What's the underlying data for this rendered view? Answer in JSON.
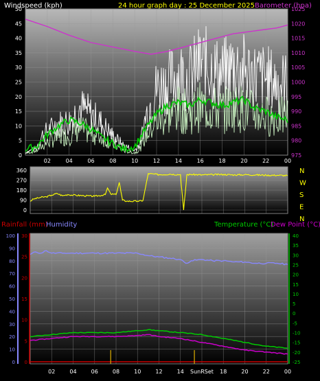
{
  "header": {
    "wind_label": "Windspeed (kph)",
    "title": "24 hour graph day : 25 December 2025",
    "baro_label": "Barometer (hpa)"
  },
  "colors": {
    "wind_gust": "#ffffff",
    "wind_avg": "#c8f0c0",
    "wind_trend": "#00cc00",
    "baro": "#cc33cc",
    "direction": "#ffff00",
    "humidity": "#8888ff",
    "temp": "#00cc00",
    "dew": "#cc00cc",
    "rain": "#cc0000"
  },
  "x_ticks": [
    "02",
    "04",
    "06",
    "08",
    "10",
    "12",
    "14",
    "16",
    "18",
    "20",
    "22",
    "00"
  ],
  "chart_data": [
    {
      "type": "line",
      "name": "wind-and-barometer",
      "title": "24 hour graph day : 25 December 2025",
      "left_axis": {
        "label": "Windspeed (kph)",
        "ticks": [
          "0",
          "5",
          "10",
          "15",
          "20",
          "25",
          "30",
          "35",
          "40",
          "45",
          "50"
        ],
        "range": [
          0,
          50
        ]
      },
      "right_axis": {
        "label": "Barometer (hpa)",
        "ticks": [
          "975",
          "980",
          "985",
          "990",
          "995",
          "1000",
          "1005",
          "1010",
          "1015",
          "1020",
          "1025"
        ],
        "range": [
          975,
          1025
        ]
      },
      "x_range_hours": [
        0,
        24
      ],
      "series": [
        {
          "name": "gust",
          "axis": "left",
          "points": [
            [
              0,
              1
            ],
            [
              1,
              3
            ],
            [
              1.5,
              8
            ],
            [
              2,
              10
            ],
            [
              3,
              13
            ],
            [
              4,
              14
            ],
            [
              5,
              20
            ],
            [
              6,
              17
            ],
            [
              7,
              13
            ],
            [
              8,
              8
            ],
            [
              9,
              4
            ],
            [
              10,
              2
            ],
            [
              10.5,
              5
            ],
            [
              11,
              16
            ],
            [
              12,
              28
            ],
            [
              13,
              30
            ],
            [
              14,
              34
            ],
            [
              15,
              32
            ],
            [
              16,
              38
            ],
            [
              17,
              36
            ],
            [
              18,
              33
            ],
            [
              19,
              37
            ],
            [
              20,
              35
            ],
            [
              21,
              33
            ],
            [
              22,
              32
            ],
            [
              23,
              30
            ],
            [
              24,
              30
            ]
          ]
        },
        {
          "name": "average",
          "axis": "left",
          "points": [
            [
              0,
              1
            ],
            [
              1,
              2
            ],
            [
              1.5,
              4
            ],
            [
              2,
              6
            ],
            [
              3,
              8
            ],
            [
              4,
              9
            ],
            [
              5,
              12
            ],
            [
              6,
              10
            ],
            [
              7,
              8
            ],
            [
              8,
              5
            ],
            [
              9,
              2
            ],
            [
              10,
              1
            ],
            [
              10.5,
              3
            ],
            [
              11,
              9
            ],
            [
              12,
              16
            ],
            [
              13,
              18
            ],
            [
              14,
              21
            ],
            [
              15,
              19
            ],
            [
              16,
              22
            ],
            [
              17,
              21
            ],
            [
              18,
              20
            ],
            [
              19,
              22
            ],
            [
              20,
              21
            ],
            [
              21,
              19
            ],
            [
              22,
              18
            ],
            [
              23,
              17
            ],
            [
              24,
              18
            ]
          ]
        },
        {
          "name": "trend",
          "axis": "left",
          "points": [
            [
              0,
              2
            ],
            [
              1,
              3
            ],
            [
              2,
              7
            ],
            [
              3,
              10
            ],
            [
              4,
              12
            ],
            [
              5,
              11
            ],
            [
              6,
              9
            ],
            [
              7,
              6
            ],
            [
              8,
              4
            ],
            [
              9,
              2
            ],
            [
              10,
              3
            ],
            [
              11,
              9
            ],
            [
              12,
              14
            ],
            [
              13,
              17
            ],
            [
              14,
              18
            ],
            [
              15,
              17
            ],
            [
              16,
              19
            ],
            [
              17,
              18
            ],
            [
              18,
              17
            ],
            [
              19,
              18
            ],
            [
              20,
              19
            ],
            [
              21,
              16
            ],
            [
              22,
              15
            ],
            [
              23,
              13
            ],
            [
              24,
              12
            ]
          ]
        },
        {
          "name": "barometer",
          "axis": "right",
          "points": [
            [
              0,
              1021.5
            ],
            [
              2,
              1019
            ],
            [
              4,
              1016
            ],
            [
              6,
              1013.5
            ],
            [
              8,
              1012
            ],
            [
              10,
              1010.5
            ],
            [
              11.5,
              1009.5
            ],
            [
              13,
              1010.5
            ],
            [
              15,
              1012.5
            ],
            [
              17,
              1014.5
            ],
            [
              19,
              1016.5
            ],
            [
              21,
              1017.5
            ],
            [
              23,
              1018.5
            ],
            [
              24,
              1019.5
            ]
          ]
        }
      ]
    },
    {
      "type": "line",
      "name": "wind-direction",
      "left_axis": {
        "ticks": [
          "0",
          "90",
          "180",
          "270",
          "360"
        ],
        "range": [
          0,
          360
        ]
      },
      "right_labels": [
        "N",
        "W",
        "S",
        "E",
        "N"
      ],
      "series": [
        {
          "name": "direction",
          "points": [
            [
              0,
              80
            ],
            [
              0.3,
              100
            ],
            [
              1,
              115
            ],
            [
              1.5,
              120
            ],
            [
              2,
              135
            ],
            [
              2.5,
              150
            ],
            [
              3,
              130
            ],
            [
              3.5,
              140
            ],
            [
              4,
              135
            ],
            [
              5,
              130
            ],
            [
              6,
              125
            ],
            [
              7,
              140
            ],
            [
              7.2,
              200
            ],
            [
              7.5,
              145
            ],
            [
              8,
              140
            ],
            [
              8.3,
              250
            ],
            [
              8.6,
              90
            ],
            [
              9,
              80
            ],
            [
              10,
              80
            ],
            [
              10.5,
              85
            ],
            [
              11,
              330
            ],
            [
              12,
              320
            ],
            [
              13,
              325
            ],
            [
              14,
              320
            ],
            [
              14.3,
              0
            ],
            [
              14.6,
              320
            ],
            [
              15,
              322
            ],
            [
              16,
              318
            ],
            [
              17,
              320
            ],
            [
              18,
              322
            ],
            [
              19,
              318
            ],
            [
              20,
              320
            ],
            [
              21,
              318
            ],
            [
              22,
              315
            ],
            [
              23,
              315
            ],
            [
              24,
              312
            ]
          ]
        }
      ]
    },
    {
      "type": "line",
      "name": "rain-humidity-temperature",
      "labels": {
        "rain": "Rainfall (mm)",
        "humidity": "Humidity",
        "temp": "Temperature (°C)",
        "dew": "Dew Point (°C)"
      },
      "humidity_axis": {
        "ticks": [
          "0",
          "10",
          "20",
          "30",
          "40",
          "50",
          "60",
          "70",
          "80",
          "90",
          "100"
        ],
        "range": [
          0,
          100
        ]
      },
      "rain_axis": {
        "ticks": [
          "0",
          "5",
          "10",
          "15",
          "20",
          "25",
          "30"
        ],
        "range": [
          0,
          30
        ]
      },
      "temp_axis": {
        "ticks": [
          "-25",
          "-20",
          "-15",
          "-10",
          "-5",
          "0",
          "5",
          "10",
          "15",
          "20",
          "25",
          "30",
          "35",
          "40"
        ],
        "range": [
          -25,
          40
        ]
      },
      "x_tick_labels": [
        "02",
        "04",
        "06",
        "08",
        "10",
        "12",
        "14",
        "SunRSet",
        "18",
        "20",
        "22",
        "00"
      ],
      "series": [
        {
          "name": "humidity",
          "axis": "humidity",
          "points": [
            [
              0,
              85
            ],
            [
              0.5,
              87
            ],
            [
              1,
              86
            ],
            [
              1.5,
              88
            ],
            [
              2,
              86
            ],
            [
              3,
              86
            ],
            [
              4,
              86
            ],
            [
              6,
              86
            ],
            [
              8,
              86
            ],
            [
              10,
              86
            ],
            [
              11,
              84
            ],
            [
              12,
              83
            ],
            [
              13,
              82
            ],
            [
              14,
              81
            ],
            [
              14.5,
              78
            ],
            [
              15,
              80
            ],
            [
              16,
              81
            ],
            [
              17,
              80
            ],
            [
              18,
              80
            ],
            [
              19,
              79
            ],
            [
              20,
              79
            ],
            [
              21,
              78
            ],
            [
              22,
              78
            ],
            [
              23,
              78
            ],
            [
              24,
              77
            ]
          ]
        },
        {
          "name": "temperature",
          "axis": "temp",
          "points": [
            [
              0,
              -12
            ],
            [
              2,
              -11
            ],
            [
              4,
              -10
            ],
            [
              6,
              -10
            ],
            [
              8,
              -10
            ],
            [
              10,
              -9
            ],
            [
              11,
              -8.5
            ],
            [
              12,
              -9
            ],
            [
              14,
              -10
            ],
            [
              16,
              -11
            ],
            [
              18,
              -13
            ],
            [
              20,
              -15
            ],
            [
              22,
              -17
            ],
            [
              24,
              -18
            ]
          ]
        },
        {
          "name": "dewpoint",
          "axis": "temp",
          "points": [
            [
              0,
              -14
            ],
            [
              2,
              -13
            ],
            [
              4,
              -12
            ],
            [
              6,
              -12
            ],
            [
              8,
              -12
            ],
            [
              10,
              -11.5
            ],
            [
              11,
              -11
            ],
            [
              12,
              -12
            ],
            [
              14,
              -13
            ],
            [
              16,
              -15
            ],
            [
              18,
              -17
            ],
            [
              20,
              -19
            ],
            [
              22,
              -20
            ],
            [
              24,
              -21
            ]
          ]
        },
        {
          "name": "rainfall",
          "axis": "rain",
          "points": [
            [
              0,
              0
            ],
            [
              24,
              0
            ]
          ]
        }
      ],
      "markers_hours": [
        7.5,
        15.3
      ]
    }
  ]
}
